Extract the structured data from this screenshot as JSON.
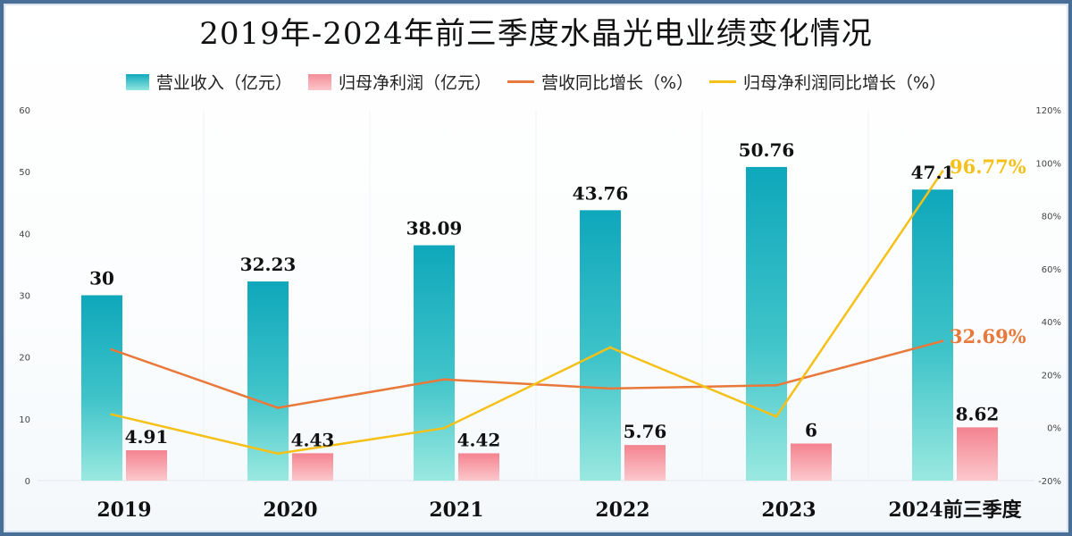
{
  "chart_data": {
    "type": "bar",
    "title": "2019年-2024年前三季度水晶光电业绩变化情况",
    "categories": [
      "2019",
      "2020",
      "2021",
      "2022",
      "2023",
      "2024前三季度"
    ],
    "series": [
      {
        "name": "营业收入（亿元）",
        "type": "bar",
        "axis": "left",
        "color": "#12a9bd",
        "values": [
          30,
          32.23,
          38.09,
          43.76,
          50.76,
          47.1
        ],
        "labels": [
          "30",
          "32.23",
          "38.09",
          "43.76",
          "50.76",
          "47.1"
        ]
      },
      {
        "name": "归母净利润（亿元）",
        "type": "bar",
        "axis": "left",
        "color": "#f48d98",
        "values": [
          4.91,
          4.43,
          4.42,
          5.76,
          6,
          8.62
        ],
        "labels": [
          "4.91",
          "4.43",
          "4.42",
          "5.76",
          "6",
          "8.62"
        ]
      },
      {
        "name": "营收同比增长（%）",
        "type": "line",
        "axis": "right",
        "color": "#e8793a",
        "values": [
          29.5,
          7.5,
          18.2,
          14.8,
          16.0,
          32.69
        ],
        "end_label": "32.69%"
      },
      {
        "name": "归母净利润同比增长（%）",
        "type": "line",
        "axis": "right",
        "color": "#f5c018",
        "values": [
          5.0,
          -9.8,
          -0.2,
          30.3,
          4.2,
          96.77
        ],
        "end_label": "96.77%"
      }
    ],
    "y_left": {
      "range": [
        0,
        60
      ],
      "ticks": [
        "0",
        "10",
        "20",
        "30",
        "40",
        "50",
        "60"
      ]
    },
    "y_right": {
      "range": [
        -20,
        120
      ],
      "ticks": [
        "-20%",
        "0%",
        "20%",
        "40%",
        "60%",
        "80%",
        "100%",
        "120%"
      ]
    },
    "grid": "vertical category separators",
    "legend_position": "top"
  }
}
